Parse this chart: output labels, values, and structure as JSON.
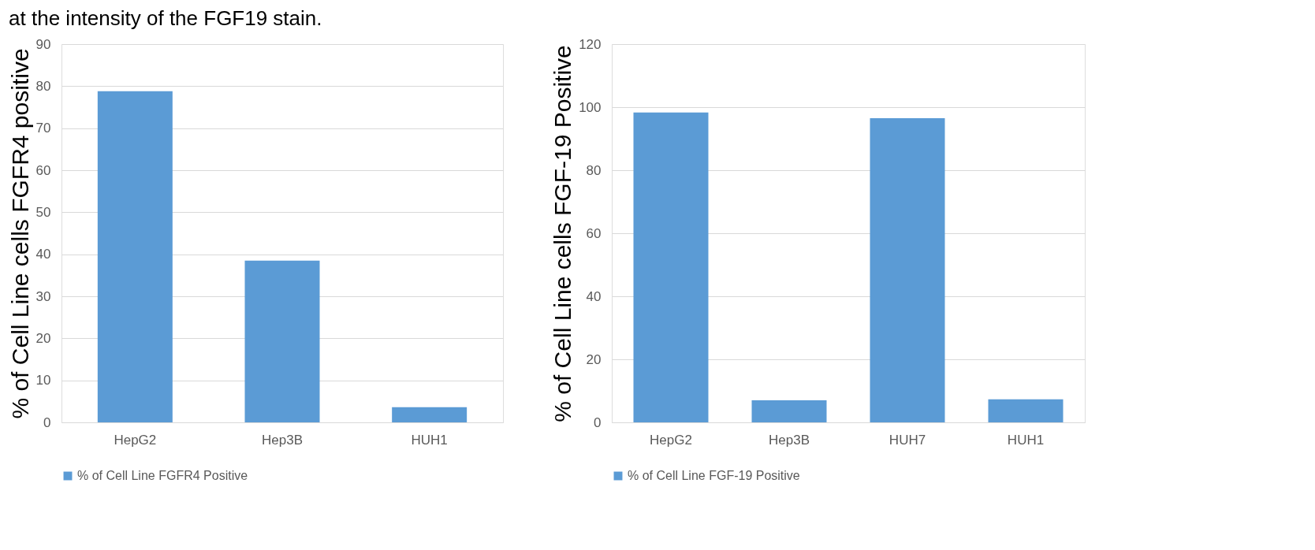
{
  "chart_data": [
    {
      "type": "bar",
      "ylabel": "% of Cell Line cells FGFR4 positive",
      "annotations": [
        "at the intensity of the FGF19 stain."
      ],
      "categories": [
        "HepG2",
        "Hep3B",
        "HUH1"
      ],
      "series": [
        {
          "name": "% of Cell Line FGFR4 Positive",
          "color": "#5b9bd5",
          "values": [
            78.8,
            38.5,
            3.6
          ]
        }
      ],
      "ylim": [
        0,
        90
      ],
      "yticks": [
        0,
        10,
        20,
        30,
        40,
        50,
        60,
        70,
        80,
        90
      ],
      "grid": "y",
      "legend": "bottom"
    },
    {
      "type": "bar",
      "ylabel": "% of Cell Line cells FGF-19 Positive",
      "categories": [
        "HepG2",
        "Hep3B",
        "HUH7",
        "HUH1"
      ],
      "series": [
        {
          "name": "% of Cell Line FGF-19 Positive",
          "color": "#5b9bd5",
          "values": [
            98.3,
            7.0,
            96.5,
            7.3
          ]
        }
      ],
      "ylim": [
        0,
        120
      ],
      "yticks": [
        0,
        20,
        40,
        60,
        80,
        100,
        120
      ],
      "grid": "y",
      "legend": "bottom"
    }
  ]
}
